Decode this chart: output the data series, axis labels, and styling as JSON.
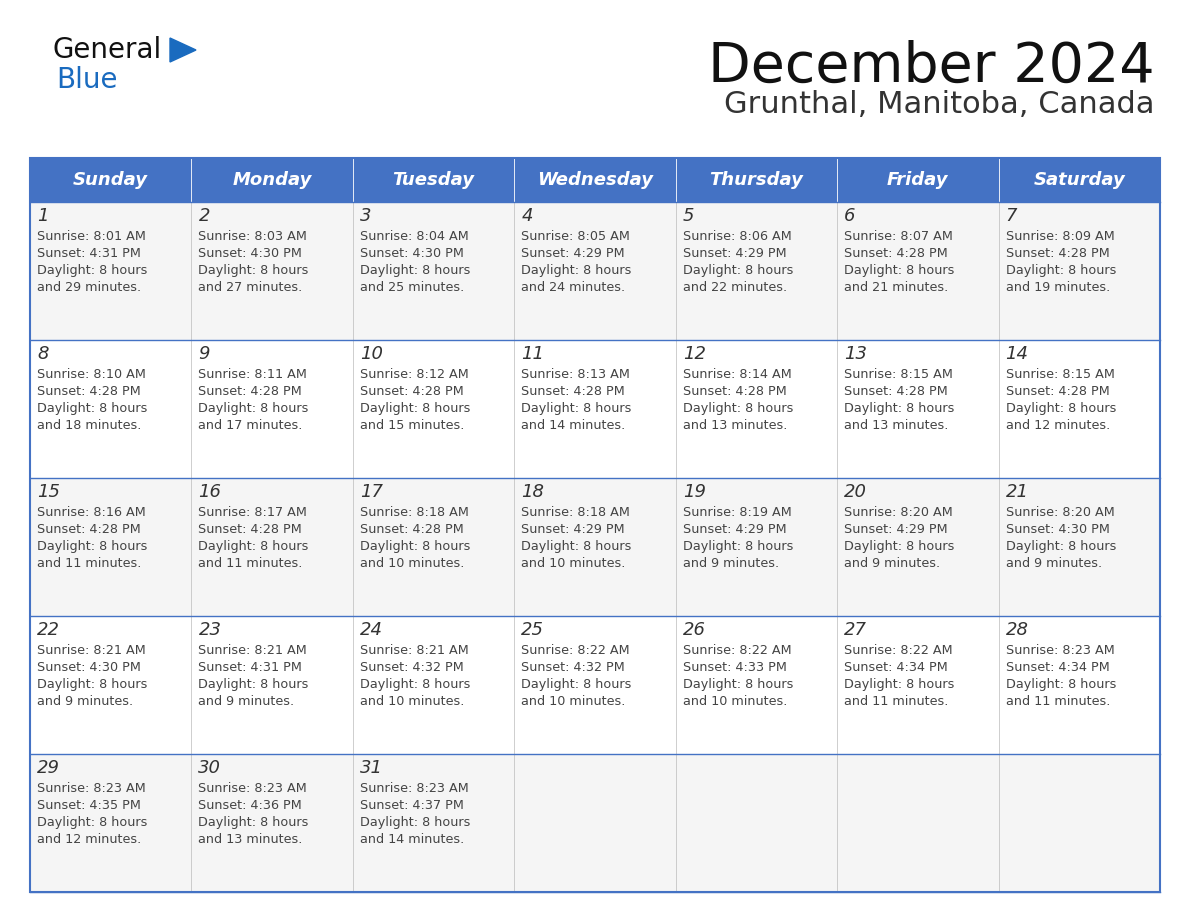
{
  "title": "December 2024",
  "subtitle": "Grunthal, Manitoba, Canada",
  "header_color": "#4472C4",
  "header_text_color": "#FFFFFF",
  "day_headers": [
    "Sunday",
    "Monday",
    "Tuesday",
    "Wednesday",
    "Thursday",
    "Friday",
    "Saturday"
  ],
  "cell_bg_even": "#F5F5F5",
  "cell_bg_odd": "#FFFFFF",
  "border_color": "#4472C4",
  "text_color": "#444444",
  "logo_black": "#1a1a1a",
  "logo_blue": "#1a6bbf",
  "logo_triangle": "#1a6bbf",
  "weeks": [
    [
      {
        "day": 1,
        "sunrise": "8:01 AM",
        "sunset": "4:31 PM",
        "daylight_minutes": 29
      },
      {
        "day": 2,
        "sunrise": "8:03 AM",
        "sunset": "4:30 PM",
        "daylight_minutes": 27
      },
      {
        "day": 3,
        "sunrise": "8:04 AM",
        "sunset": "4:30 PM",
        "daylight_minutes": 25
      },
      {
        "day": 4,
        "sunrise": "8:05 AM",
        "sunset": "4:29 PM",
        "daylight_minutes": 24
      },
      {
        "day": 5,
        "sunrise": "8:06 AM",
        "sunset": "4:29 PM",
        "daylight_minutes": 22
      },
      {
        "day": 6,
        "sunrise": "8:07 AM",
        "sunset": "4:28 PM",
        "daylight_minutes": 21
      },
      {
        "day": 7,
        "sunrise": "8:09 AM",
        "sunset": "4:28 PM",
        "daylight_minutes": 19
      }
    ],
    [
      {
        "day": 8,
        "sunrise": "8:10 AM",
        "sunset": "4:28 PM",
        "daylight_minutes": 18
      },
      {
        "day": 9,
        "sunrise": "8:11 AM",
        "sunset": "4:28 PM",
        "daylight_minutes": 17
      },
      {
        "day": 10,
        "sunrise": "8:12 AM",
        "sunset": "4:28 PM",
        "daylight_minutes": 15
      },
      {
        "day": 11,
        "sunrise": "8:13 AM",
        "sunset": "4:28 PM",
        "daylight_minutes": 14
      },
      {
        "day": 12,
        "sunrise": "8:14 AM",
        "sunset": "4:28 PM",
        "daylight_minutes": 13
      },
      {
        "day": 13,
        "sunrise": "8:15 AM",
        "sunset": "4:28 PM",
        "daylight_minutes": 13
      },
      {
        "day": 14,
        "sunrise": "8:15 AM",
        "sunset": "4:28 PM",
        "daylight_minutes": 12
      }
    ],
    [
      {
        "day": 15,
        "sunrise": "8:16 AM",
        "sunset": "4:28 PM",
        "daylight_minutes": 11
      },
      {
        "day": 16,
        "sunrise": "8:17 AM",
        "sunset": "4:28 PM",
        "daylight_minutes": 11
      },
      {
        "day": 17,
        "sunrise": "8:18 AM",
        "sunset": "4:28 PM",
        "daylight_minutes": 10
      },
      {
        "day": 18,
        "sunrise": "8:18 AM",
        "sunset": "4:29 PM",
        "daylight_minutes": 10
      },
      {
        "day": 19,
        "sunrise": "8:19 AM",
        "sunset": "4:29 PM",
        "daylight_minutes": 9
      },
      {
        "day": 20,
        "sunrise": "8:20 AM",
        "sunset": "4:29 PM",
        "daylight_minutes": 9
      },
      {
        "day": 21,
        "sunrise": "8:20 AM",
        "sunset": "4:30 PM",
        "daylight_minutes": 9
      }
    ],
    [
      {
        "day": 22,
        "sunrise": "8:21 AM",
        "sunset": "4:30 PM",
        "daylight_minutes": 9
      },
      {
        "day": 23,
        "sunrise": "8:21 AM",
        "sunset": "4:31 PM",
        "daylight_minutes": 9
      },
      {
        "day": 24,
        "sunrise": "8:21 AM",
        "sunset": "4:32 PM",
        "daylight_minutes": 10
      },
      {
        "day": 25,
        "sunrise": "8:22 AM",
        "sunset": "4:32 PM",
        "daylight_minutes": 10
      },
      {
        "day": 26,
        "sunrise": "8:22 AM",
        "sunset": "4:33 PM",
        "daylight_minutes": 10
      },
      {
        "day": 27,
        "sunrise": "8:22 AM",
        "sunset": "4:34 PM",
        "daylight_minutes": 11
      },
      {
        "day": 28,
        "sunrise": "8:23 AM",
        "sunset": "4:34 PM",
        "daylight_minutes": 11
      }
    ],
    [
      {
        "day": 29,
        "sunrise": "8:23 AM",
        "sunset": "4:35 PM",
        "daylight_minutes": 12
      },
      {
        "day": 30,
        "sunrise": "8:23 AM",
        "sunset": "4:36 PM",
        "daylight_minutes": 13
      },
      {
        "day": 31,
        "sunrise": "8:23 AM",
        "sunset": "4:37 PM",
        "daylight_minutes": 14
      },
      null,
      null,
      null,
      null
    ]
  ]
}
